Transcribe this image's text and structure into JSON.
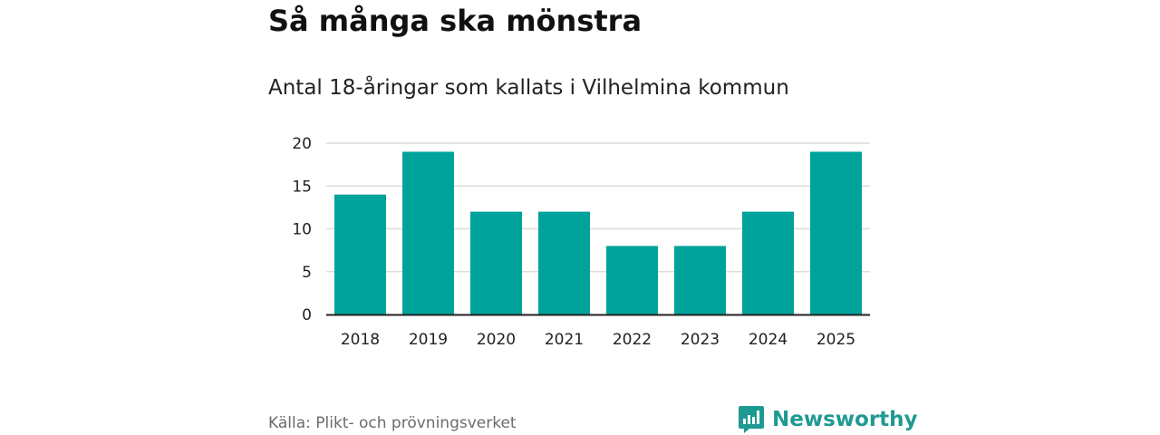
{
  "header": {
    "title": "Så många ska mönstra",
    "subtitle": "Antal 18-åringar som kallats i Vilhelmina kommun"
  },
  "colors": {
    "bar": "#00a39b",
    "grid": "#dcdcdc",
    "axis": "#222222",
    "brand": "#1f9a92"
  },
  "chart_data": {
    "type": "bar",
    "title": "Så många ska mönstra",
    "subtitle": "Antal 18-åringar som kallats i Vilhelmina kommun",
    "categories": [
      "2018",
      "2019",
      "2020",
      "2021",
      "2022",
      "2023",
      "2024",
      "2025"
    ],
    "values": [
      14,
      19,
      12,
      12,
      8,
      8,
      12,
      19
    ],
    "xlabel": "",
    "ylabel": "",
    "ylim": [
      0,
      20
    ],
    "yticks": [
      0,
      5,
      10,
      15,
      20
    ],
    "grid": true,
    "legend": "none"
  },
  "footer": {
    "source": "Källa: Plikt- och prövningsverket",
    "brand": "Newsworthy",
    "brand_icon": "newsworthy-logo-icon"
  }
}
